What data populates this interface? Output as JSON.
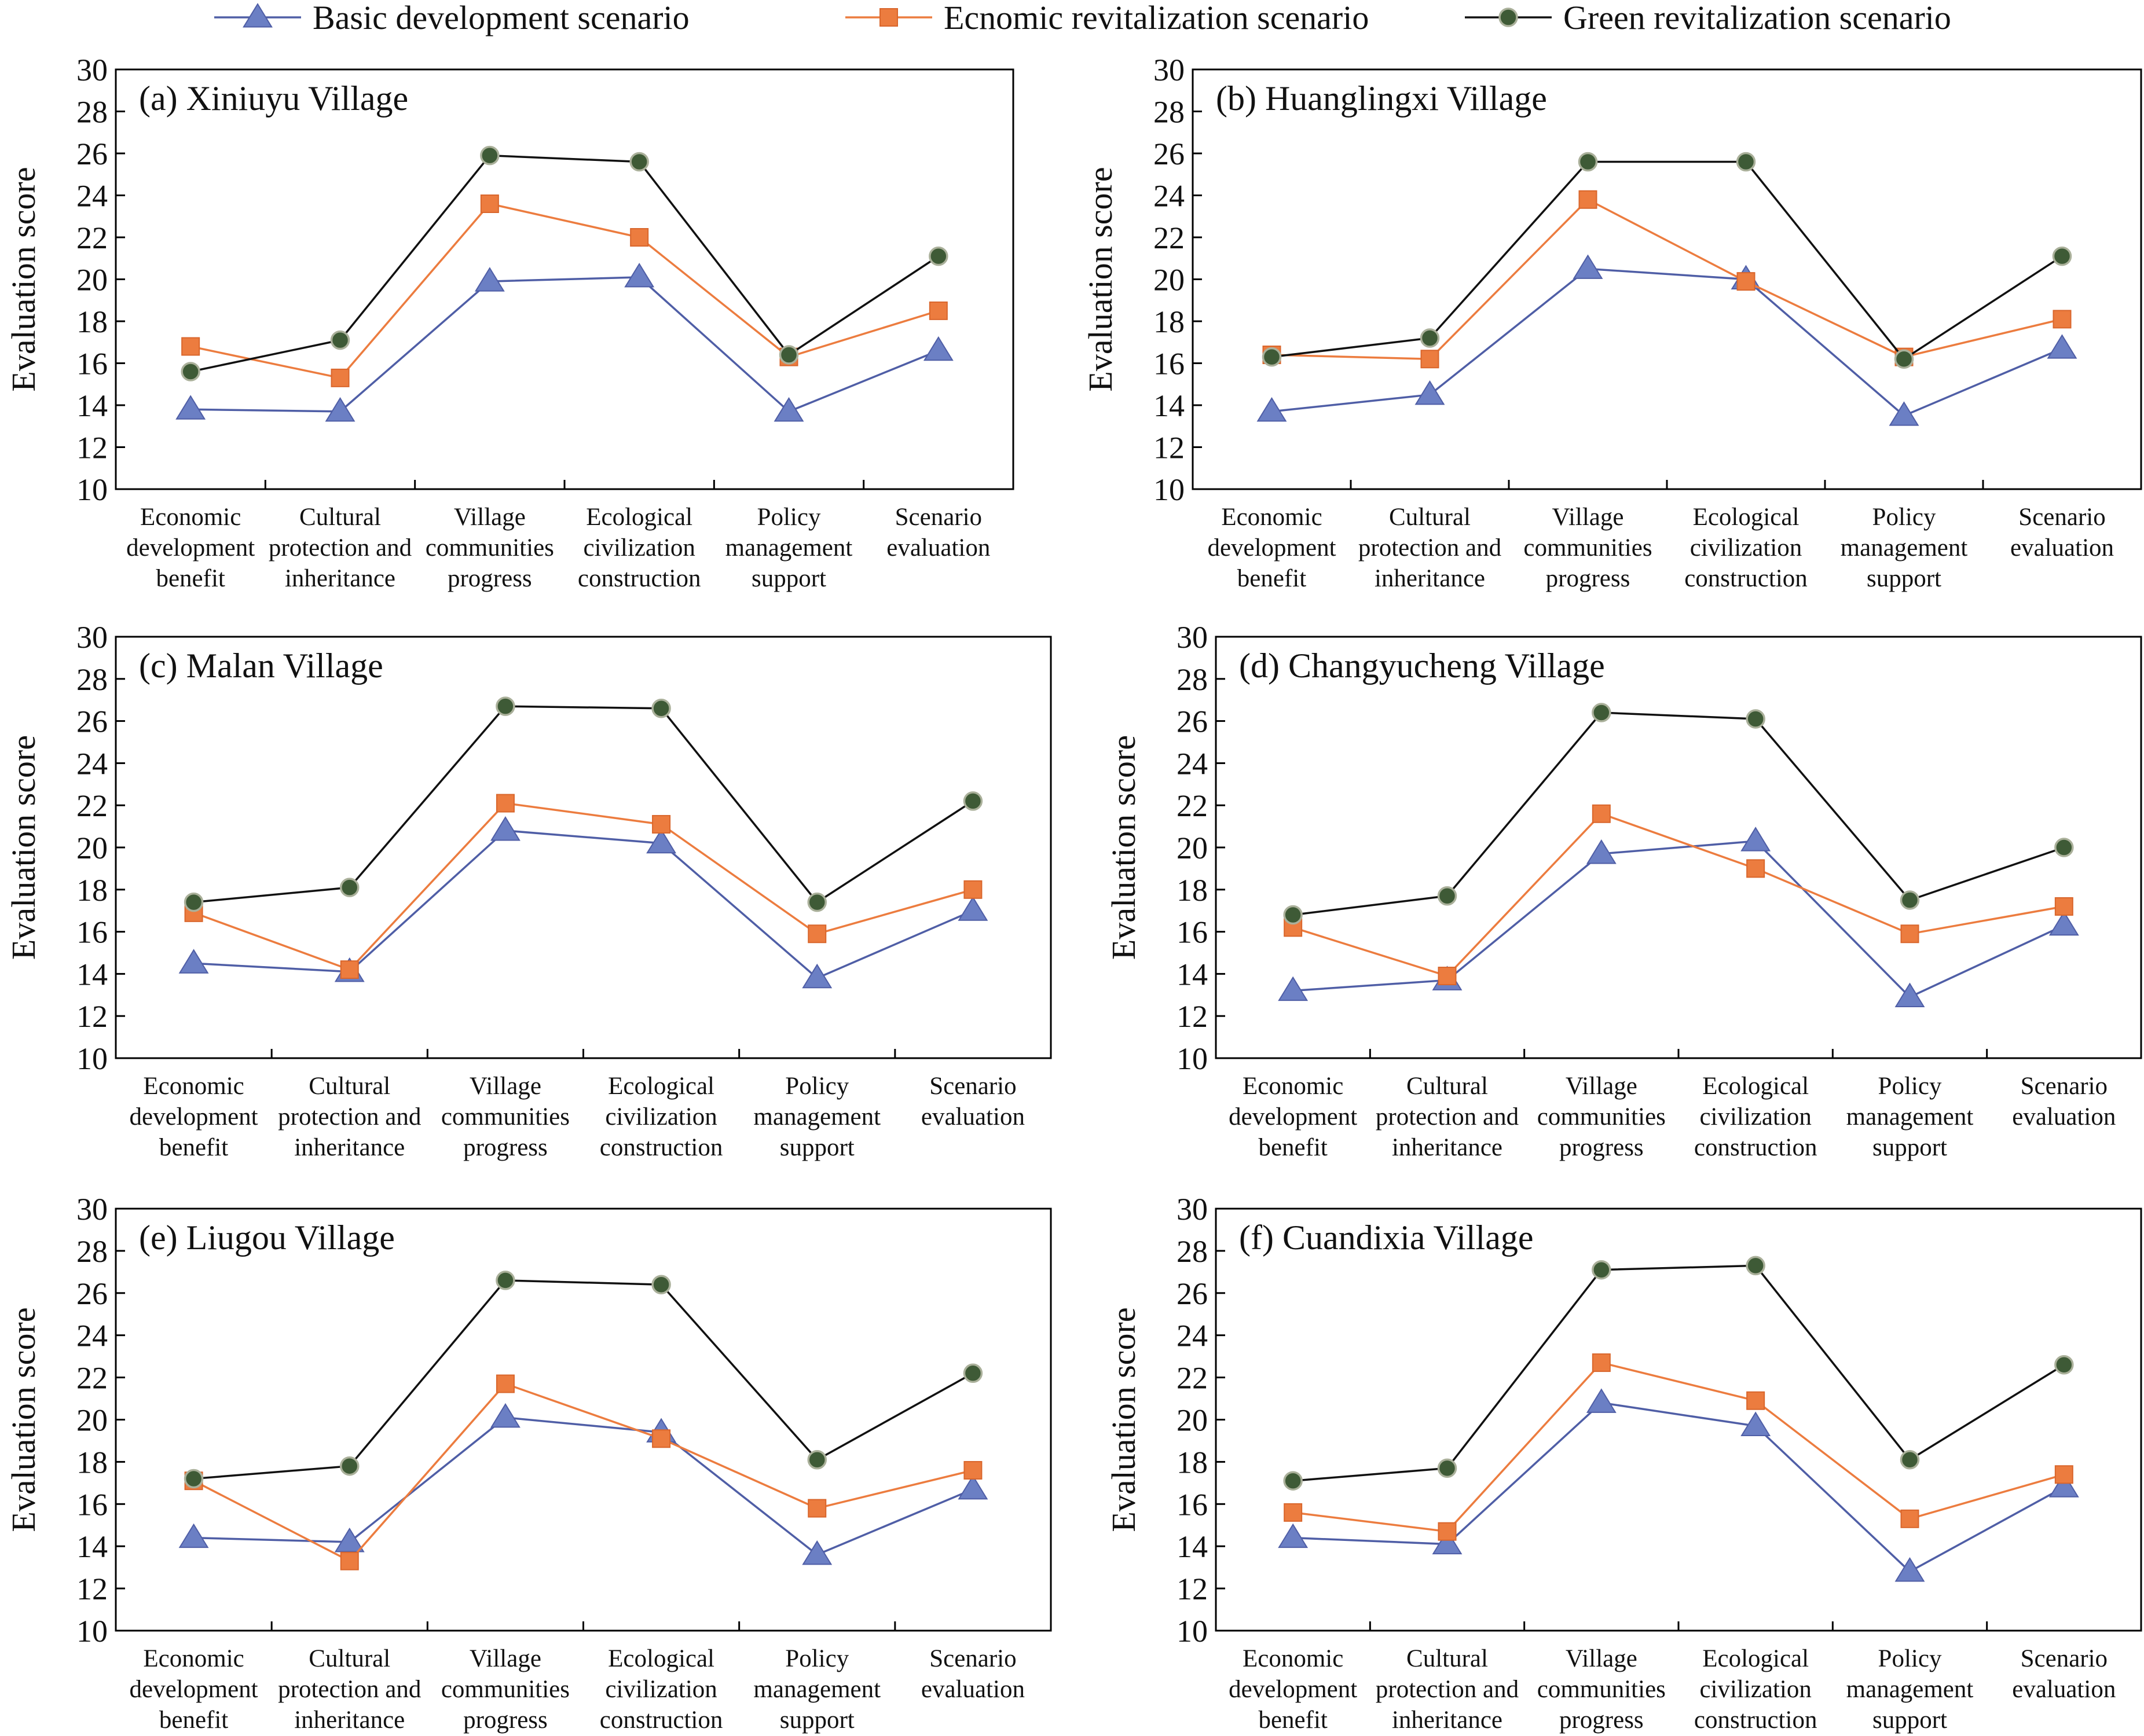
{
  "legend": {
    "position": "top",
    "items": [
      {
        "label": "Basic development scenario",
        "color": "#4f5ea6",
        "fill": "#6b7fc4",
        "marker": "triangle"
      },
      {
        "label": "Ecnomic revitalization scenario",
        "color": "#ec7c3f",
        "fill": "#ec7c3f",
        "marker": "square"
      },
      {
        "label": "Green revitalization scenario",
        "color": "#111111",
        "fill": "#3e5a36",
        "marker": "circle"
      }
    ]
  },
  "chart_data": [
    {
      "type": "line",
      "title": "(a) Xiniuyu Village",
      "xlabel": "",
      "ylabel": "Evaluation score",
      "categories": [
        "Economic development benefit",
        "Cultural protection and inheritance",
        "Village communities progress",
        "Ecological civilization construction",
        "Policy management support",
        "Scenario evaluation"
      ],
      "ylim": [
        10,
        30
      ],
      "yticks": [
        "10",
        "12",
        "14",
        "16",
        "18",
        "20",
        "22",
        "24",
        "26",
        "28",
        "30"
      ],
      "grid": false,
      "series": [
        {
          "name": "Basic development scenario",
          "values": [
            13.8,
            13.7,
            19.9,
            20.1,
            13.7,
            16.6
          ]
        },
        {
          "name": "Ecnomic revitalization scenario",
          "values": [
            16.8,
            15.3,
            23.6,
            22.0,
            16.3,
            18.5
          ]
        },
        {
          "name": "Green revitalization scenario",
          "values": [
            15.6,
            17.1,
            25.9,
            25.6,
            16.4,
            21.1
          ]
        }
      ]
    },
    {
      "type": "line",
      "title": "(b) Huanglingxi Village",
      "xlabel": "",
      "ylabel": "Evaluation score",
      "categories": [
        "Economic development benefit",
        "Cultural protection and inheritance",
        "Village communities progress",
        "Ecological civilization construction",
        "Policy management support",
        "Scenario evaluation"
      ],
      "ylim": [
        10,
        30
      ],
      "yticks": [
        "10",
        "12",
        "14",
        "16",
        "18",
        "20",
        "22",
        "24",
        "26",
        "28",
        "30"
      ],
      "grid": false,
      "series": [
        {
          "name": "Basic development scenario",
          "values": [
            13.7,
            14.5,
            20.5,
            20.0,
            13.5,
            16.7
          ]
        },
        {
          "name": "Ecnomic revitalization scenario",
          "values": [
            16.4,
            16.2,
            23.8,
            19.9,
            16.3,
            18.1
          ]
        },
        {
          "name": "Green revitalization scenario",
          "values": [
            16.3,
            17.2,
            25.6,
            25.6,
            16.2,
            21.1
          ]
        }
      ]
    },
    {
      "type": "line",
      "title": "(c) Malan Village",
      "xlabel": "",
      "ylabel": "Evaluation score",
      "categories": [
        "Economic development benefit",
        "Cultural protection and inheritance",
        "Village communities progress",
        "Ecological civilization construction",
        "Policy management support",
        "Scenario evaluation"
      ],
      "ylim": [
        10,
        30
      ],
      "yticks": [
        "10",
        "12",
        "14",
        "16",
        "18",
        "20",
        "22",
        "24",
        "26",
        "28",
        "30"
      ],
      "grid": false,
      "series": [
        {
          "name": "Basic development scenario",
          "values": [
            14.5,
            14.1,
            20.8,
            20.2,
            13.8,
            17.0
          ]
        },
        {
          "name": "Ecnomic revitalization scenario",
          "values": [
            16.9,
            14.2,
            22.1,
            21.1,
            15.9,
            18.0
          ]
        },
        {
          "name": "Green revitalization scenario",
          "values": [
            17.4,
            18.1,
            26.7,
            26.6,
            17.4,
            22.2
          ]
        }
      ]
    },
    {
      "type": "line",
      "title": "(d) Changyucheng Village",
      "xlabel": "",
      "ylabel": "Evaluation score",
      "categories": [
        "Economic development benefit",
        "Cultural protection and inheritance",
        "Village communities progress",
        "Ecological civilization construction",
        "Policy management support",
        "Scenario evaluation"
      ],
      "ylim": [
        10,
        30
      ],
      "yticks": [
        "10",
        "12",
        "14",
        "16",
        "18",
        "20",
        "22",
        "24",
        "26",
        "28",
        "30"
      ],
      "grid": false,
      "series": [
        {
          "name": "Basic development scenario",
          "values": [
            13.2,
            13.7,
            19.7,
            20.3,
            12.9,
            16.3
          ]
        },
        {
          "name": "Ecnomic revitalization scenario",
          "values": [
            16.2,
            13.9,
            21.6,
            19.0,
            15.9,
            17.2
          ]
        },
        {
          "name": "Green revitalization scenario",
          "values": [
            16.8,
            17.7,
            26.4,
            26.1,
            17.5,
            20.0
          ]
        }
      ]
    },
    {
      "type": "line",
      "title": "(e) Liugou Village",
      "xlabel": "",
      "ylabel": "Evaluation score",
      "categories": [
        "Economic development benefit",
        "Cultural protection and inheritance",
        "Village communities progress",
        "Ecological civilization construction",
        "Policy management support",
        "Scenario evaluation"
      ],
      "ylim": [
        10,
        30
      ],
      "yticks": [
        "10",
        "12",
        "14",
        "16",
        "18",
        "20",
        "22",
        "24",
        "26",
        "28",
        "30"
      ],
      "grid": false,
      "series": [
        {
          "name": "Basic development scenario",
          "values": [
            14.4,
            14.2,
            20.1,
            19.4,
            13.6,
            16.7
          ]
        },
        {
          "name": "Ecnomic revitalization scenario",
          "values": [
            17.1,
            13.3,
            21.7,
            19.1,
            15.8,
            17.6
          ]
        },
        {
          "name": "Green revitalization scenario",
          "values": [
            17.2,
            17.8,
            26.6,
            26.4,
            18.1,
            22.2
          ]
        }
      ]
    },
    {
      "type": "line",
      "title": "(f) Cuandixia Village",
      "xlabel": "",
      "ylabel": "Evaluation score",
      "categories": [
        "Economic development benefit",
        "Cultural protection and inheritance",
        "Village communities progress",
        "Ecological civilization construction",
        "Policy management support",
        "Scenario evaluation"
      ],
      "ylim": [
        10,
        30
      ],
      "yticks": [
        "10",
        "12",
        "14",
        "16",
        "18",
        "20",
        "22",
        "24",
        "26",
        "28",
        "30"
      ],
      "grid": false,
      "series": [
        {
          "name": "Basic development scenario",
          "values": [
            14.4,
            14.1,
            20.8,
            19.7,
            12.8,
            16.8
          ]
        },
        {
          "name": "Ecnomic revitalization scenario",
          "values": [
            15.6,
            14.7,
            22.7,
            20.9,
            15.3,
            17.4
          ]
        },
        {
          "name": "Green revitalization scenario",
          "values": [
            17.1,
            17.7,
            27.1,
            27.3,
            18.1,
            22.6
          ]
        }
      ]
    }
  ]
}
